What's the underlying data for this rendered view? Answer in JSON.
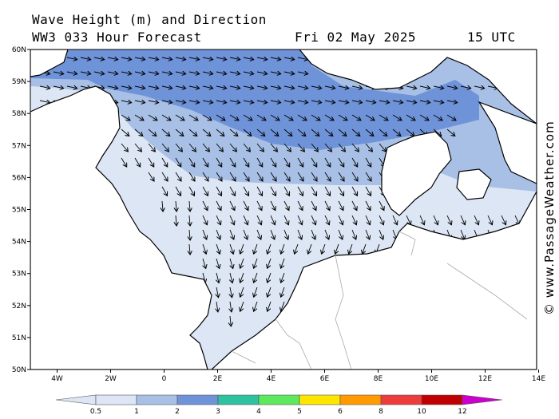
{
  "title": {
    "line1": "Wave Height (m) and Direction",
    "line2": "WW3 033 Hour Forecast",
    "date": "Fri 02 May 2025",
    "time": "15 UTC"
  },
  "credit": "© www.PassageWeather.com",
  "axes": {
    "lat_labels": [
      "60N",
      "59N",
      "58N",
      "57N",
      "56N",
      "55N",
      "54N",
      "53N",
      "52N",
      "51N",
      "50N"
    ],
    "lon_labels": [
      "4W",
      "2W",
      "0",
      "2E",
      "4E",
      "6E",
      "8E",
      "10E",
      "12E",
      "14E"
    ]
  },
  "legend": {
    "labels": [
      "0.5",
      "1",
      "2",
      "3",
      "4",
      "5",
      "6",
      "8",
      "10",
      "12"
    ],
    "colors": [
      "#dde6f5",
      "#a8c0e6",
      "#6f93d8",
      "#2ec2a0",
      "#5ee85e",
      "#ffe600",
      "#ff9a00",
      "#ee3b3b",
      "#c00000",
      "#cc00cc"
    ]
  },
  "map_colors": {
    "sea_low": "#dde6f5",
    "sea_mid": "#a8c0e6",
    "sea_high": "#6f93d8",
    "coast": "#000000",
    "border": "#aaaaaa"
  },
  "wave_direction": "mostly NW flow in north turning to N/NE flow in the southern North Sea"
}
